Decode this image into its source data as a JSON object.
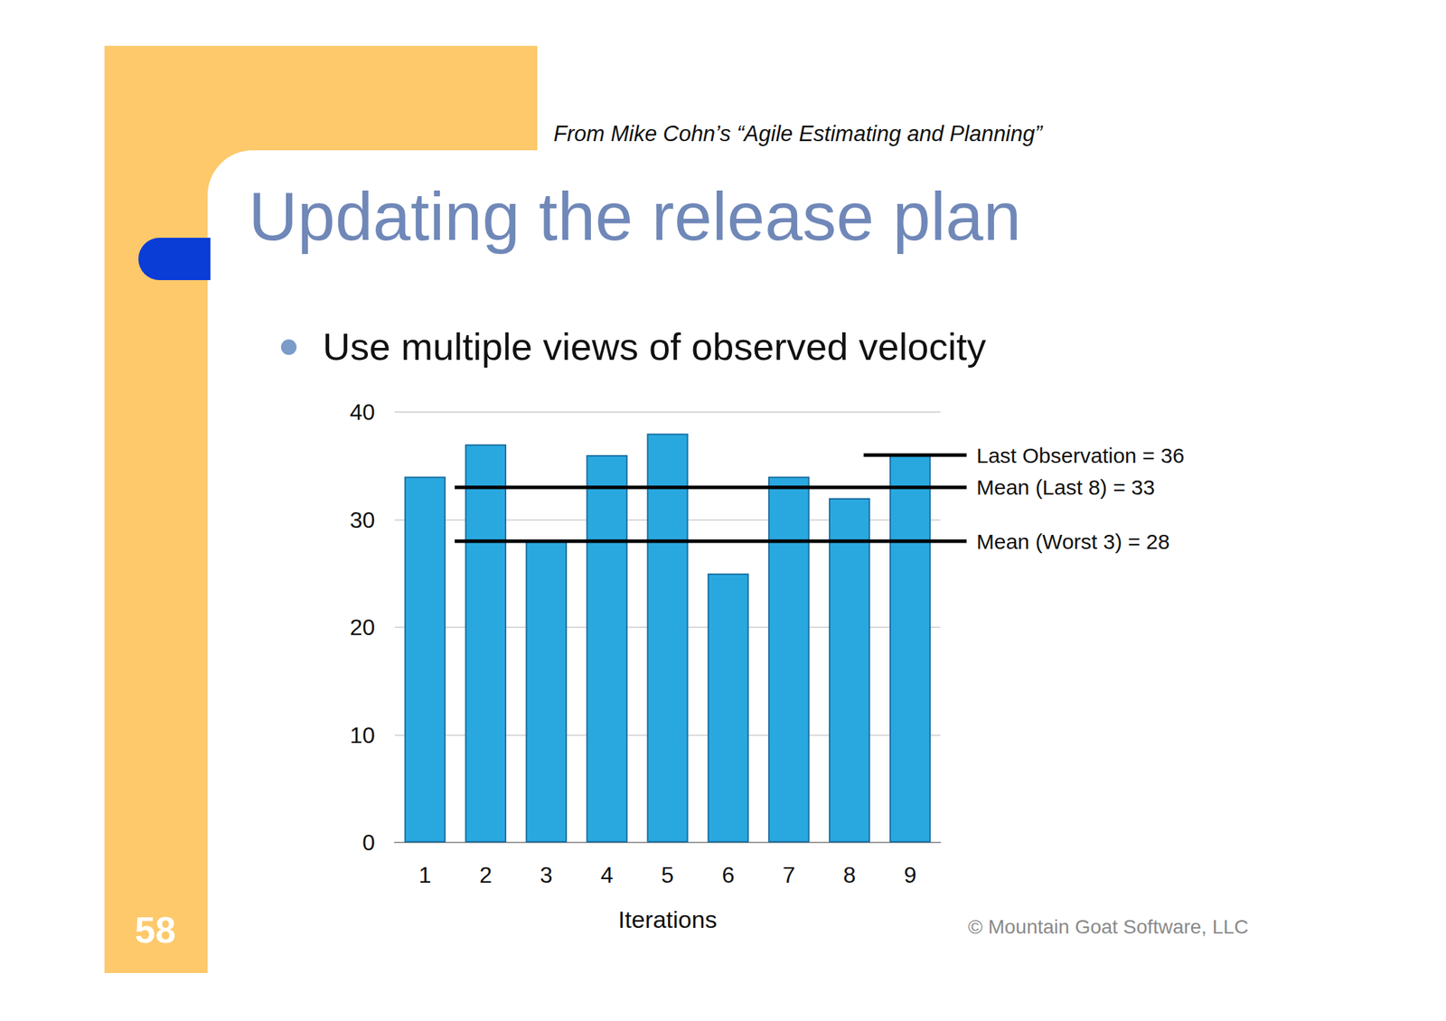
{
  "slide": {
    "source": "From Mike Cohn’s “Agile Estimating and Planning”",
    "title": "Updating the release plan",
    "bullet": "Use multiple views of observed velocity",
    "page_number": "58",
    "copyright": "© Mountain Goat Software, LLC"
  },
  "chart_data": {
    "type": "bar",
    "categories": [
      "1",
      "2",
      "3",
      "4",
      "5",
      "6",
      "7",
      "8",
      "9"
    ],
    "values": [
      34,
      37,
      28,
      36,
      38,
      25,
      34,
      32,
      36
    ],
    "color": "#29a8e0",
    "ylim": [
      0,
      40
    ],
    "yticks": [
      0,
      10,
      20,
      30,
      40
    ],
    "x_label": "Iterations",
    "grid": true,
    "reference_lines": [
      {
        "label": "Last Observation = 36",
        "value": 36
      },
      {
        "label": "Mean (Last 8) = 33",
        "value": 33
      },
      {
        "label": "Mean (Worst 3) = 28",
        "value": 28
      }
    ]
  }
}
